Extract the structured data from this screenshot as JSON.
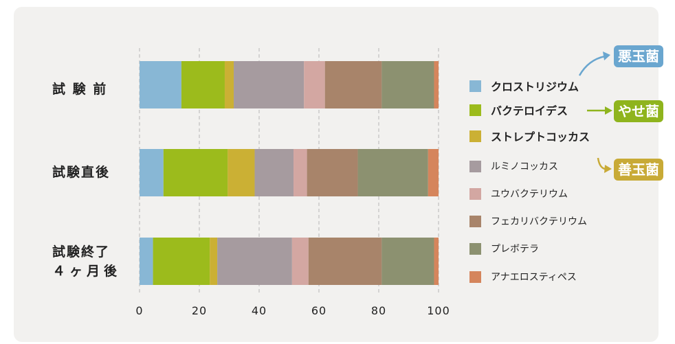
{
  "chart_data": {
    "type": "bar",
    "stacked": true,
    "orientation": "horizontal",
    "categories": [
      "試 験 前",
      "試験直後",
      "試験終了\n４ヶ月後"
    ],
    "xlim": [
      0,
      100
    ],
    "xticks": [
      "0",
      "20",
      "40",
      "60",
      "80",
      "100"
    ],
    "grid": "vertical dashed",
    "series": [
      {
        "name": "クロストリジウム",
        "color": "#88b7d5",
        "values": [
          14,
          8,
          4.5
        ]
      },
      {
        "name": "バクテロイデス",
        "color": "#9cbb1c",
        "values": [
          14.5,
          21.5,
          19
        ]
      },
      {
        "name": "ストレプトコッカス",
        "color": "#cbb034",
        "values": [
          3,
          9,
          2.5
        ]
      },
      {
        "name": "ルミノコッカス",
        "color": "#a69b9f",
        "values": [
          23.5,
          13,
          25
        ]
      },
      {
        "name": "ユウバクテリウム",
        "color": "#d3a7a2",
        "values": [
          7,
          4.5,
          5.5
        ]
      },
      {
        "name": "フェカリバクテリウム",
        "color": "#a8846a",
        "values": [
          19,
          17,
          24.5
        ]
      },
      {
        "name": "プレボテラ",
        "color": "#8c9170",
        "values": [
          17.5,
          23.5,
          17.5
        ]
      },
      {
        "name": "アナエロスティペス",
        "color": "#d5855c",
        "values": [
          1.5,
          3.5,
          1.5
        ]
      }
    ],
    "legend": "right"
  },
  "badges": {
    "bad": {
      "label": "悪玉菌",
      "color": "#6aa6cf"
    },
    "slim": {
      "label": "やせ菌",
      "color": "#8fb41d"
    },
    "good": {
      "label": "善玉菌",
      "color": "#c8aa36"
    }
  },
  "labels": {
    "row1": "試 験 前",
    "row2": "試験直後",
    "row3_line1": "試験終了",
    "row3_line2": "４ヶ月後"
  }
}
